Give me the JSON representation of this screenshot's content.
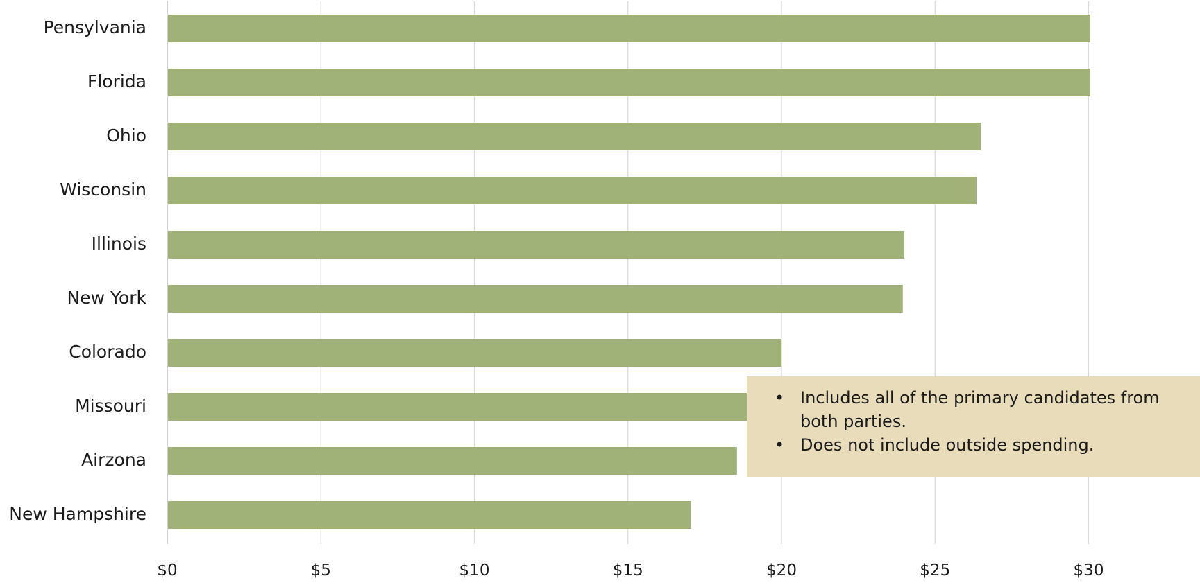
{
  "chart_data": {
    "type": "bar",
    "orientation": "horizontal",
    "title": "",
    "xlabel": "",
    "ylabel": "",
    "categories": [
      "Pensylvania",
      "Florida",
      "Ohio",
      "Wisconsin",
      "Illinois",
      "New York",
      "Colorado",
      "Missouri",
      "Airzona",
      "New Hampshire"
    ],
    "values": [
      30.05,
      30.05,
      26.5,
      26.35,
      24.0,
      23.95,
      20.0,
      18.9,
      18.55,
      17.05
    ],
    "xlim": [
      0,
      33
    ],
    "xticks": [
      0,
      5,
      10,
      15,
      20,
      25,
      30
    ],
    "xtick_labels": [
      "$0",
      "$5",
      "$10",
      "$15",
      "$20",
      "$25",
      "$30"
    ],
    "grid": "vertical",
    "bar_color": "#a0b278",
    "grid_color": "#d9d9d9"
  },
  "note": {
    "background": "#e8dcbb",
    "items": [
      "Includes all of the primary candidates from both parties.",
      "Does not include outside spending."
    ]
  }
}
